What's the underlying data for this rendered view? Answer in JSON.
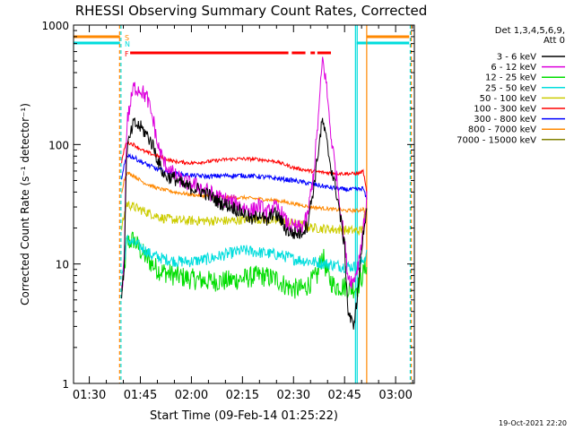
{
  "chart_data": {
    "type": "line",
    "title": "RHESSI Observing Summary Count Rates, Corrected",
    "xlabel": "Start Time (09-Feb-14 01:25:22)",
    "ylabel": "Corrected Count Rate (s⁻¹ detector⁻¹)",
    "y_scale": "log",
    "ylim": [
      1,
      1000
    ],
    "xlim_minutes": [
      25.37,
      125.5
    ],
    "x_ticks": [
      {
        "label": "01:30",
        "min": 30
      },
      {
        "label": "01:45",
        "min": 45
      },
      {
        "label": "02:00",
        "min": 60
      },
      {
        "label": "02:15",
        "min": 75
      },
      {
        "label": "02:30",
        "min": 90
      },
      {
        "label": "02:45",
        "min": 105
      },
      {
        "label": "03:00",
        "min": 120
      }
    ],
    "y_ticks": [
      {
        "label": "1",
        "value": 1
      },
      {
        "label": "10",
        "value": 10
      },
      {
        "label": "100",
        "value": 100
      },
      {
        "label": "1000",
        "value": 1000
      }
    ],
    "legend_header": [
      "Det 1,3,4,5,6,9,",
      "Att 0"
    ],
    "legend_position": "right",
    "series": [
      {
        "name": "3 - 6 keV",
        "color": "#000000",
        "points": [
          [
            39.5,
            5.5
          ],
          [
            40.2,
            9
          ],
          [
            41,
            90
          ],
          [
            43,
            150
          ],
          [
            45,
            140
          ],
          [
            47,
            120
          ],
          [
            49,
            95
          ],
          [
            50,
            75
          ],
          [
            52,
            55
          ],
          [
            55,
            52
          ],
          [
            58,
            45
          ],
          [
            62,
            42
          ],
          [
            65,
            38
          ],
          [
            68,
            33
          ],
          [
            72,
            30
          ],
          [
            75,
            27
          ],
          [
            78,
            23
          ],
          [
            80,
            27
          ],
          [
            82,
            22
          ],
          [
            84,
            27
          ],
          [
            86,
            24
          ],
          [
            88,
            19
          ],
          [
            90,
            18
          ],
          [
            92,
            18
          ],
          [
            94,
            21
          ],
          [
            96,
            45
          ],
          [
            97.5,
            100
          ],
          [
            98.5,
            160
          ],
          [
            99.5,
            115
          ],
          [
            101,
            65
          ],
          [
            103,
            35
          ],
          [
            105,
            14
          ],
          [
            106,
            4
          ],
          [
            107.5,
            3
          ],
          [
            108.5,
            4.5
          ],
          [
            109.5,
            9
          ],
          [
            110.5,
            18
          ],
          [
            111.5,
            30
          ]
        ]
      },
      {
        "name": "6 - 12 keV",
        "color": "#dd00dd",
        "points": [
          [
            39.5,
            6
          ],
          [
            40.2,
            10
          ],
          [
            41,
            150
          ],
          [
            43,
            300
          ],
          [
            45,
            290
          ],
          [
            47,
            245
          ],
          [
            49,
            150
          ],
          [
            50,
            100
          ],
          [
            52,
            70
          ],
          [
            55,
            55
          ],
          [
            58,
            48
          ],
          [
            62,
            45
          ],
          [
            65,
            40
          ],
          [
            68,
            36
          ],
          [
            72,
            33
          ],
          [
            75,
            30
          ],
          [
            78,
            28
          ],
          [
            80,
            31
          ],
          [
            82,
            26
          ],
          [
            84,
            30
          ],
          [
            86,
            28
          ],
          [
            88,
            22
          ],
          [
            90,
            20
          ],
          [
            92,
            20
          ],
          [
            94,
            24
          ],
          [
            96,
            60
          ],
          [
            97.5,
            200
          ],
          [
            98.5,
            520
          ],
          [
            99.5,
            350
          ],
          [
            101,
            120
          ],
          [
            103,
            45
          ],
          [
            105,
            15
          ],
          [
            106,
            8
          ],
          [
            107.5,
            7
          ],
          [
            109,
            10
          ],
          [
            110.5,
            20
          ],
          [
            111.5,
            35
          ]
        ]
      },
      {
        "name": "12 - 25 keV",
        "color": "#00dd00",
        "points": [
          [
            39.5,
            6
          ],
          [
            40.2,
            8
          ],
          [
            41,
            15
          ],
          [
            43,
            16
          ],
          [
            45,
            13
          ],
          [
            47,
            11
          ],
          [
            50,
            9
          ],
          [
            55,
            8
          ],
          [
            60,
            7.5
          ],
          [
            65,
            7.2
          ],
          [
            70,
            7.2
          ],
          [
            75,
            7.5
          ],
          [
            80,
            8
          ],
          [
            85,
            7.5
          ],
          [
            88,
            6.5
          ],
          [
            90,
            6.2
          ],
          [
            93,
            6.2
          ],
          [
            95,
            7
          ],
          [
            97,
            8
          ],
          [
            98.5,
            12
          ],
          [
            100,
            8
          ],
          [
            102,
            6.5
          ],
          [
            105,
            6.5
          ],
          [
            107,
            6.2
          ],
          [
            109,
            6.5
          ],
          [
            111.5,
            10
          ]
        ]
      },
      {
        "name": "25 - 50 keV",
        "color": "#00dddd",
        "points": [
          [
            39.5,
            8
          ],
          [
            40.2,
            10
          ],
          [
            41,
            16
          ],
          [
            43,
            15
          ],
          [
            45,
            14
          ],
          [
            48,
            12
          ],
          [
            52,
            11
          ],
          [
            56,
            10.5
          ],
          [
            60,
            10.5
          ],
          [
            65,
            11
          ],
          [
            70,
            12
          ],
          [
            75,
            13
          ],
          [
            80,
            12.5
          ],
          [
            85,
            12
          ],
          [
            88,
            11.5
          ],
          [
            90,
            11
          ],
          [
            95,
            10.5
          ],
          [
            100,
            10
          ],
          [
            105,
            9.5
          ],
          [
            109,
            9.5
          ],
          [
            111.5,
            12
          ]
        ]
      },
      {
        "name": "50 - 100 keV",
        "color": "#cccc00",
        "points": [
          [
            39.5,
            20
          ],
          [
            40.2,
            25
          ],
          [
            41,
            32
          ],
          [
            43,
            30
          ],
          [
            47,
            27
          ],
          [
            52,
            24
          ],
          [
            58,
            23
          ],
          [
            65,
            23
          ],
          [
            72,
            23
          ],
          [
            78,
            24
          ],
          [
            84,
            23
          ],
          [
            90,
            22
          ],
          [
            96,
            20
          ],
          [
            102,
            19.5
          ],
          [
            108,
            19
          ],
          [
            110,
            19
          ],
          [
            111.5,
            30
          ]
        ]
      },
      {
        "name": "100 - 300 keV",
        "color": "#ff0000",
        "points": [
          [
            39.5,
            70
          ],
          [
            40.2,
            90
          ],
          [
            41,
            105
          ],
          [
            43,
            100
          ],
          [
            46,
            88
          ],
          [
            50,
            80
          ],
          [
            55,
            72
          ],
          [
            60,
            70
          ],
          [
            65,
            72
          ],
          [
            70,
            75
          ],
          [
            75,
            76
          ],
          [
            80,
            75
          ],
          [
            85,
            72
          ],
          [
            90,
            64
          ],
          [
            95,
            60
          ],
          [
            100,
            58
          ],
          [
            105,
            57
          ],
          [
            109,
            57
          ],
          [
            110.5,
            60
          ],
          [
            111,
            48
          ],
          [
            111.5,
            40
          ]
        ]
      },
      {
        "name": "300 - 800 keV",
        "color": "#0000ff",
        "points": [
          [
            39.5,
            50
          ],
          [
            40.2,
            65
          ],
          [
            41,
            82
          ],
          [
            43,
            78
          ],
          [
            46,
            70
          ],
          [
            50,
            62
          ],
          [
            55,
            57
          ],
          [
            60,
            55
          ],
          [
            65,
            54
          ],
          [
            70,
            55
          ],
          [
            75,
            55
          ],
          [
            80,
            54
          ],
          [
            85,
            52
          ],
          [
            90,
            50
          ],
          [
            95,
            47
          ],
          [
            100,
            44
          ],
          [
            105,
            42
          ],
          [
            109,
            42
          ],
          [
            110.5,
            43
          ],
          [
            111,
            38
          ],
          [
            111.5,
            35
          ]
        ]
      },
      {
        "name": "800 - 7000 keV",
        "color": "#ff8800",
        "points": [
          [
            39.5,
            40
          ],
          [
            40.2,
            50
          ],
          [
            41,
            58
          ],
          [
            43,
            55
          ],
          [
            46,
            48
          ],
          [
            50,
            43
          ],
          [
            55,
            40
          ],
          [
            60,
            38
          ],
          [
            65,
            37
          ],
          [
            70,
            36
          ],
          [
            75,
            36
          ],
          [
            80,
            35
          ],
          [
            85,
            34
          ],
          [
            90,
            32
          ],
          [
            95,
            30
          ],
          [
            100,
            29
          ],
          [
            105,
            28
          ],
          [
            109,
            28
          ],
          [
            110.5,
            29
          ],
          [
            111,
            27
          ],
          [
            111.5,
            26
          ]
        ]
      },
      {
        "name": "7000 - 15000 keV",
        "color": "#808000",
        "points": []
      }
    ],
    "flags": [
      {
        "label": "S",
        "color": "#ff8800"
      },
      {
        "label": "N",
        "color": "#00dddd"
      },
      {
        "label": "F",
        "color": "#ff0000"
      }
    ],
    "flag_segments": {
      "S": [
        [
          24,
          39
        ],
        [
          111.5,
          124
        ]
      ],
      "N": [
        [
          24,
          39
        ],
        [
          108.5,
          124
        ]
      ],
      "F": [
        [
          42,
          88.5
        ],
        [
          89.5,
          93.5
        ],
        [
          95,
          96.3
        ],
        [
          97,
          101
        ]
      ]
    },
    "vertical_lines_minutes": [
      {
        "min": 38.9,
        "color": "#ff8800",
        "dash": true
      },
      {
        "min": 39.3,
        "color": "#00dddd",
        "dash": true
      },
      {
        "min": 108.2,
        "color": "#00dddd",
        "dash": false
      },
      {
        "min": 108.7,
        "color": "#00dddd",
        "dash": false
      },
      {
        "min": 111.5,
        "color": "#ff8800",
        "dash": false
      },
      {
        "min": 124.3,
        "color": "#00dddd",
        "dash": true
      },
      {
        "min": 124.6,
        "color": "#ff8800",
        "dash": true
      }
    ]
  },
  "date_stamp": "19-Oct-2021 22:20"
}
